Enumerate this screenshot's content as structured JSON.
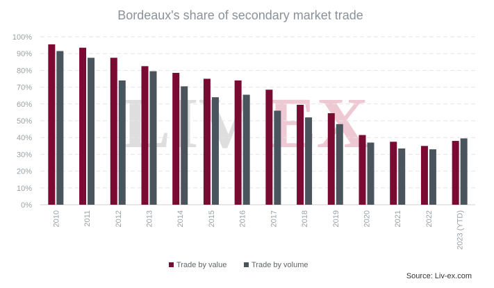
{
  "colors": {
    "value_series": "#7b0a32",
    "volume_series": "#4a545d",
    "grid": "#e6e6e6",
    "watermark_grey": "#d9d9d9",
    "watermark_pink": "#ecc0cd"
  },
  "watermark": {
    "left": "LIV",
    "right": "EX"
  },
  "source": "Source: Liv-ex.com",
  "chart_data": {
    "type": "bar",
    "title": "Bordeaux's share of secondary market trade",
    "xlabel": "",
    "ylabel": "",
    "ylim": [
      0,
      100
    ],
    "yticks": [
      "0%",
      "10%",
      "20%",
      "30%",
      "40%",
      "50%",
      "60%",
      "70%",
      "80%",
      "90%",
      "100%"
    ],
    "categories": [
      "2010",
      "2011",
      "2012",
      "2013",
      "2014",
      "2015",
      "2016",
      "2017",
      "2018",
      "2019",
      "2020",
      "2021",
      "2022",
      "2023 (YTD)"
    ],
    "series": [
      {
        "name": "Trade by value",
        "values": [
          95.5,
          93.5,
          87.5,
          82.5,
          78.5,
          75,
          74,
          68.5,
          59.5,
          54.5,
          41.5,
          37.5,
          35,
          38
        ]
      },
      {
        "name": "Trade by volume",
        "values": [
          91.5,
          87.5,
          74,
          79.5,
          70.5,
          64,
          65.5,
          56,
          52,
          48,
          37,
          33.5,
          33,
          39.5
        ]
      }
    ],
    "grid": true,
    "legend": "bottom-center"
  }
}
